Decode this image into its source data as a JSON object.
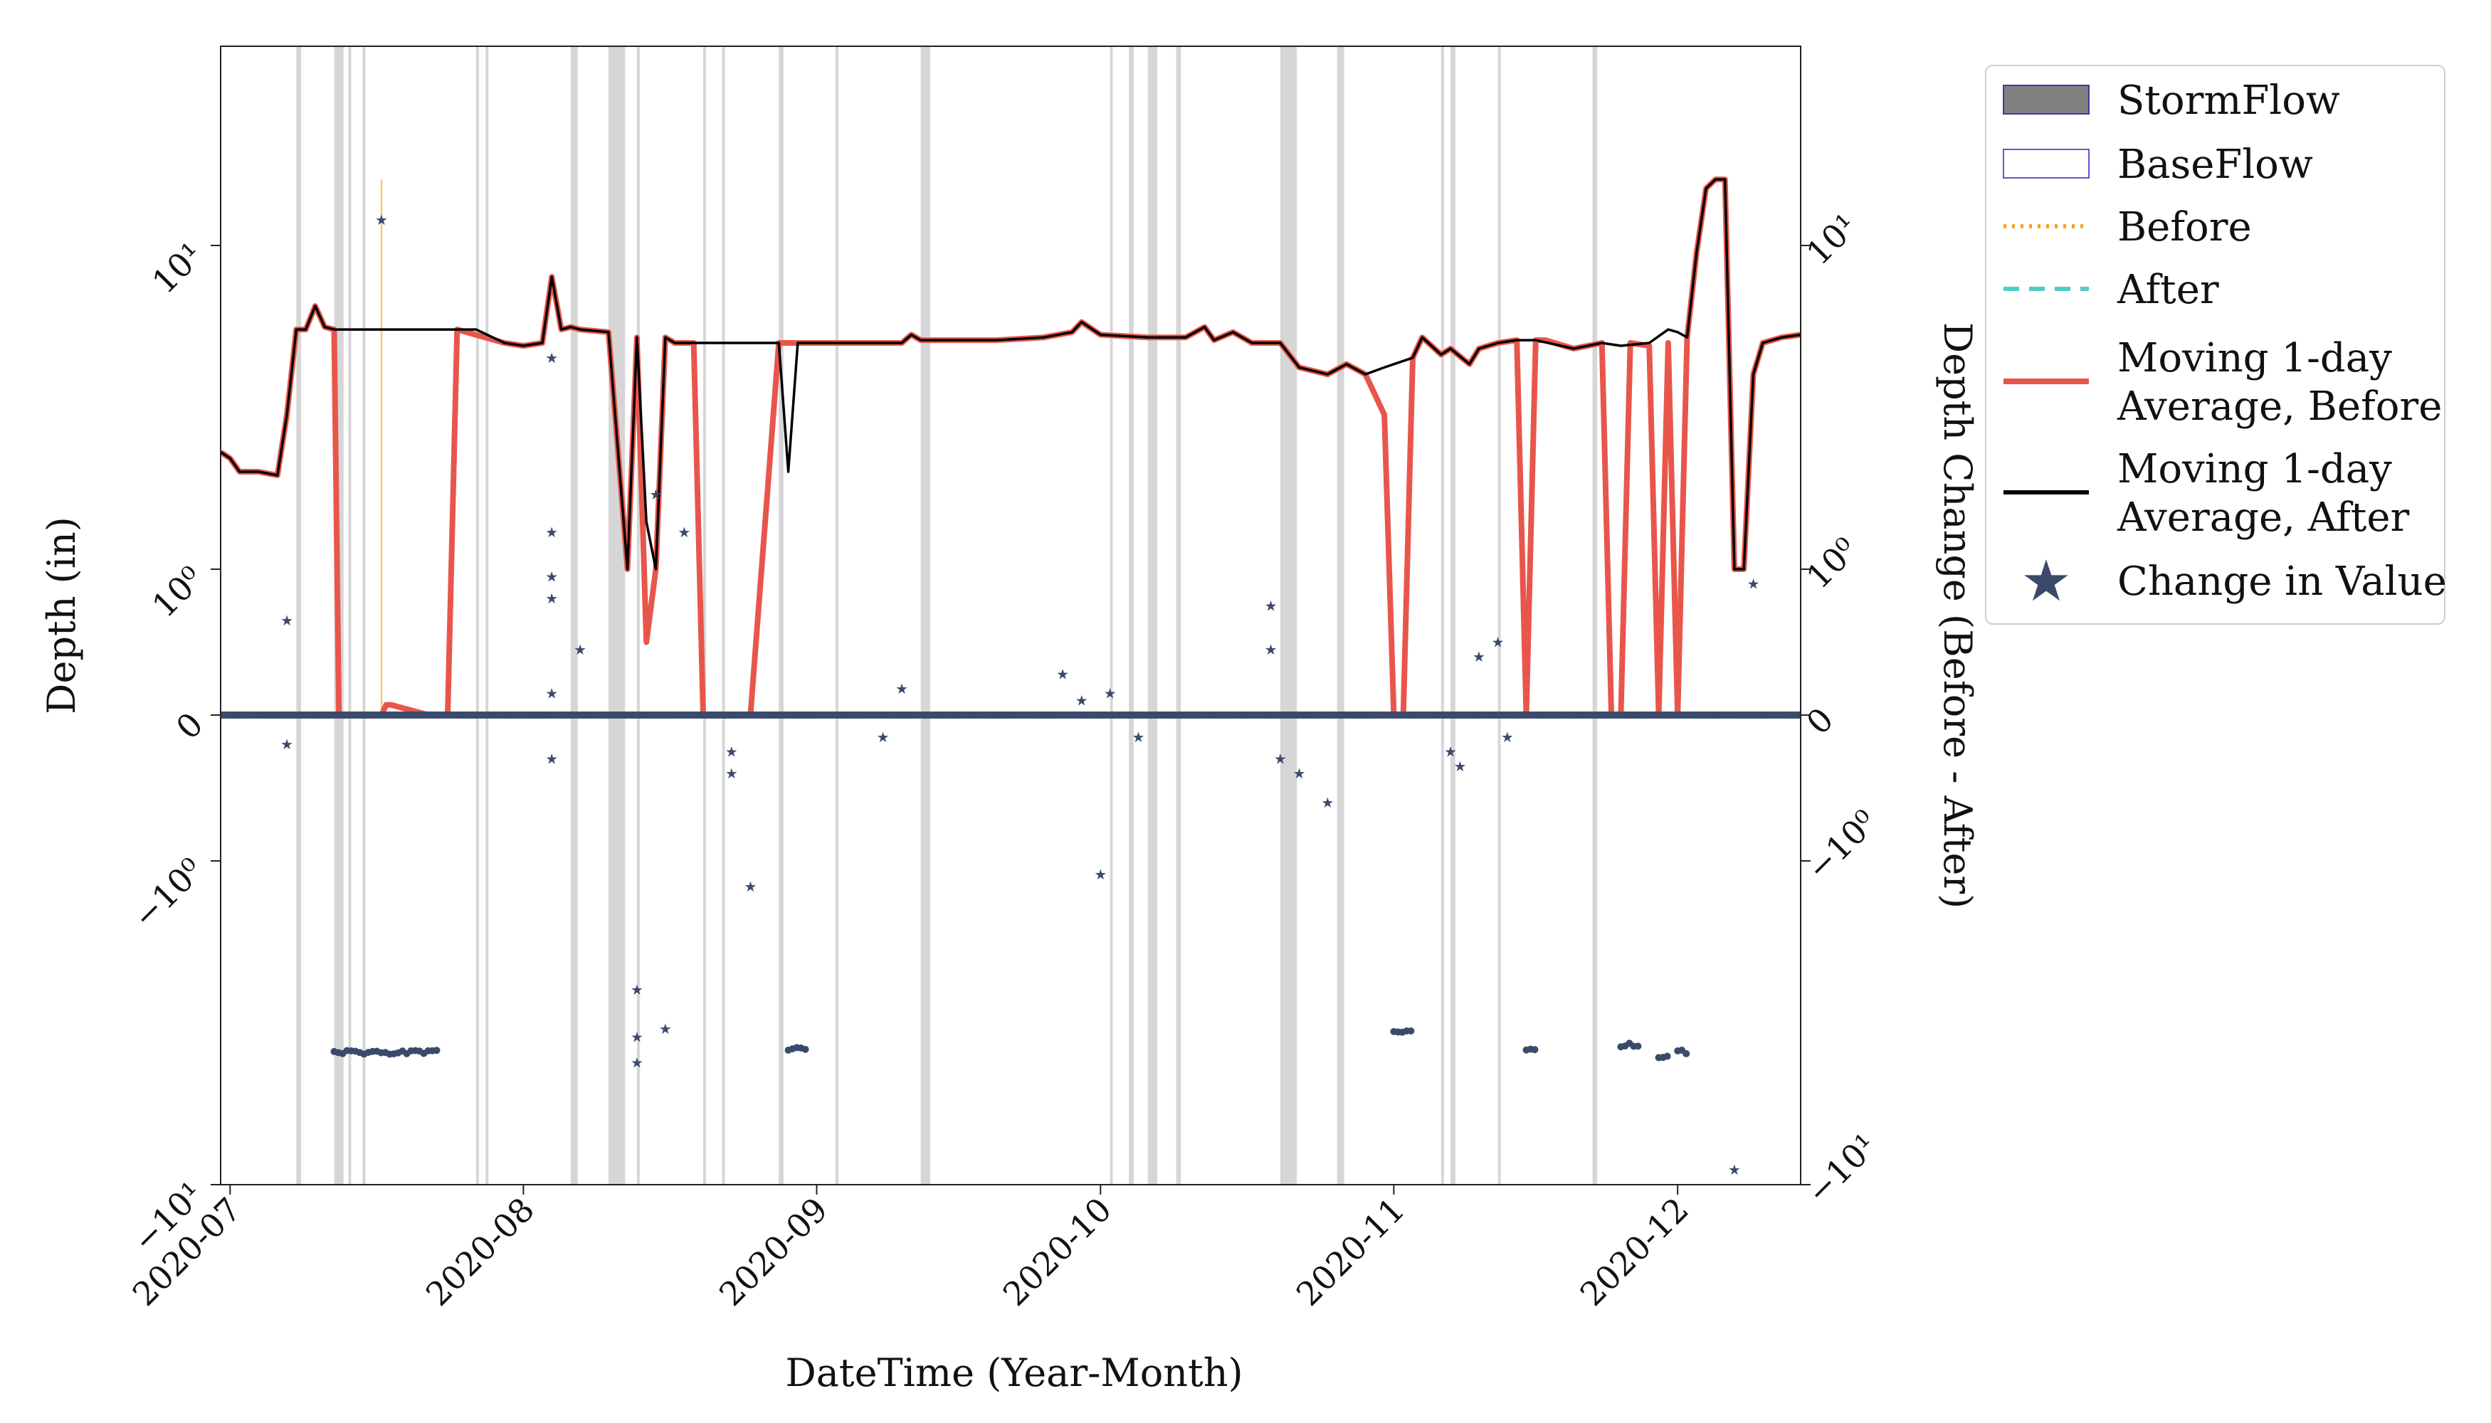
{
  "chart_data": {
    "type": "line",
    "xlabel": "DateTime (Year-Month)",
    "ylabel": "Depth (in)",
    "y2label": "Depth Change (Before - After)",
    "yscale": "symlog",
    "ylim": [
      -10,
      30
    ],
    "y2lim": [
      -10,
      30
    ],
    "xlim": [
      "2020-06-30",
      "2020-12-14"
    ],
    "x_ticks": [
      "2020-07-01",
      "2020-08-01",
      "2020-09-01",
      "2020-10-01",
      "2020-11-01",
      "2020-12-01"
    ],
    "x_tick_labels": [
      "2020-07",
      "2020-08",
      "2020-09",
      "2020-10",
      "2020-11",
      "2020-12"
    ],
    "y_tick_labels": [
      "10¹",
      "10⁰",
      "0",
      "−10⁰",
      "−10¹"
    ],
    "legend_position": "right-outside-top",
    "legend": [
      {
        "label": "StormFlow",
        "kind": "patch-filled",
        "color": "#808080",
        "edge": "#3a3aa8"
      },
      {
        "label": "BaseFlow",
        "kind": "patch-empty",
        "color": "#ffffff",
        "edge": "#5a5acc"
      },
      {
        "label": "Before",
        "kind": "line-dotted",
        "color": "#f5a623"
      },
      {
        "label": "After",
        "kind": "line-dashed",
        "color": "#4ecdc4"
      },
      {
        "label": "Moving 1-day\nAverage, Before",
        "kind": "line-solid-thick",
        "color": "#e8564b"
      },
      {
        "label": "Moving 1-day\nAverage, After",
        "kind": "line-solid",
        "color": "#000000"
      },
      {
        "label": "Change in Value",
        "kind": "marker-star",
        "color": "#3b4a6b"
      }
    ],
    "colors": {
      "storm": "#c8c8c8",
      "before": "#f5b041",
      "after": "#8bc9a3",
      "avg_before": "#e8564b",
      "avg_after": "#000000",
      "change": "#3b4a6b"
    },
    "stormflow_periods": [
      [
        "2020-07-08",
        "2020-07-08T12"
      ],
      [
        "2020-07-12",
        "2020-07-13"
      ],
      [
        "2020-07-13T12",
        "2020-07-13T18"
      ],
      [
        "2020-07-15",
        "2020-07-15T06"
      ],
      [
        "2020-07-27",
        "2020-07-27T06"
      ],
      [
        "2020-07-28",
        "2020-07-28T06"
      ],
      [
        "2020-08-06",
        "2020-08-06T18"
      ],
      [
        "2020-08-10",
        "2020-08-11T18"
      ],
      [
        "2020-08-13",
        "2020-08-13T06"
      ],
      [
        "2020-08-20",
        "2020-08-20T06"
      ],
      [
        "2020-08-22",
        "2020-08-22T06"
      ],
      [
        "2020-08-28",
        "2020-08-28T12"
      ],
      [
        "2020-09-03",
        "2020-09-03T06"
      ],
      [
        "2020-09-12",
        "2020-09-13"
      ],
      [
        "2020-10-02",
        "2020-10-02T06"
      ],
      [
        "2020-10-04",
        "2020-10-04T12"
      ],
      [
        "2020-10-06",
        "2020-10-07"
      ],
      [
        "2020-10-09",
        "2020-10-09T12"
      ],
      [
        "2020-10-20",
        "2020-10-21T18"
      ],
      [
        "2020-10-26",
        "2020-10-26T18"
      ],
      [
        "2020-11-06",
        "2020-11-06T06"
      ],
      [
        "2020-11-07",
        "2020-11-07T12"
      ],
      [
        "2020-11-12",
        "2020-11-12T06"
      ],
      [
        "2020-11-22",
        "2020-11-22T12"
      ]
    ],
    "series": [
      {
        "name": "Moving 1-day Average, After",
        "x": [
          "2020-06-30",
          "2020-07-01",
          "2020-07-02",
          "2020-07-04",
          "2020-07-06",
          "2020-07-07",
          "2020-07-08",
          "2020-07-09",
          "2020-07-10",
          "2020-07-11",
          "2020-07-12",
          "2020-07-13",
          "2020-07-14",
          "2020-07-20",
          "2020-07-25",
          "2020-07-26",
          "2020-07-27",
          "2020-07-30",
          "2020-08-01",
          "2020-08-03",
          "2020-08-04",
          "2020-08-05",
          "2020-08-06",
          "2020-08-07",
          "2020-08-10",
          "2020-08-12",
          "2020-08-13",
          "2020-08-14",
          "2020-08-15",
          "2020-08-16",
          "2020-08-17",
          "2020-08-18",
          "2020-08-19",
          "2020-08-20",
          "2020-08-25",
          "2020-08-28",
          "2020-08-29",
          "2020-08-30",
          "2020-08-31",
          "2020-09-10",
          "2020-09-11",
          "2020-09-12",
          "2020-09-20",
          "2020-09-25",
          "2020-09-28",
          "2020-09-29",
          "2020-10-01",
          "2020-10-06",
          "2020-10-10",
          "2020-10-12",
          "2020-10-13",
          "2020-10-15",
          "2020-10-17",
          "2020-10-20",
          "2020-10-22",
          "2020-10-25",
          "2020-10-27",
          "2020-10-29",
          "2020-10-31",
          "2020-11-03",
          "2020-11-04",
          "2020-11-06",
          "2020-11-07",
          "2020-11-09",
          "2020-11-10",
          "2020-11-12",
          "2020-11-14",
          "2020-11-16",
          "2020-11-20",
          "2020-11-23",
          "2020-11-25",
          "2020-11-28",
          "2020-11-30",
          "2020-12-01",
          "2020-12-02",
          "2020-12-03",
          "2020-12-04",
          "2020-12-05",
          "2020-12-06",
          "2020-12-07",
          "2020-12-08",
          "2020-12-09",
          "2020-12-10",
          "2020-12-12",
          "2020-12-14"
        ],
        "y": [
          2.3,
          2.2,
          2.0,
          2.0,
          1.95,
          3.0,
          5.5,
          5.5,
          6.5,
          5.6,
          5.5,
          5.5,
          5.5,
          5.5,
          5.5,
          5.5,
          5.5,
          5.0,
          4.9,
          5.0,
          8.0,
          5.5,
          5.6,
          5.5,
          5.4,
          1.0,
          5.2,
          1.4,
          1.0,
          5.2,
          5.0,
          5.0,
          5.0,
          5.0,
          5.0,
          5.0,
          2.0,
          5.0,
          5.0,
          5.0,
          5.3,
          5.1,
          5.1,
          5.2,
          5.4,
          5.8,
          5.3,
          5.2,
          5.2,
          5.6,
          5.1,
          5.4,
          5.0,
          5.0,
          4.2,
          4.0,
          4.3,
          4.0,
          4.2,
          4.5,
          5.2,
          4.6,
          4.8,
          4.3,
          4.8,
          5.0,
          5.1,
          5.1,
          4.8,
          5.0,
          4.9,
          5.0,
          5.5,
          5.4,
          5.2,
          9.5,
          15.0,
          16.0,
          16.0,
          1.0,
          1.0,
          4.0,
          5.0,
          5.2,
          5.3
        ]
      },
      {
        "name": "Moving 1-day Average, Before",
        "x": [
          "2020-06-30",
          "2020-07-01",
          "2020-07-02",
          "2020-07-04",
          "2020-07-06",
          "2020-07-07",
          "2020-07-08",
          "2020-07-09",
          "2020-07-10",
          "2020-07-11",
          "2020-07-12",
          "2020-07-12T12",
          "2020-07-17",
          "2020-07-17T12",
          "2020-07-18",
          "2020-07-22",
          "2020-07-23",
          "2020-07-24",
          "2020-07-25",
          "2020-07-30",
          "2020-08-01",
          "2020-08-03",
          "2020-08-04",
          "2020-08-05",
          "2020-08-06",
          "2020-08-07",
          "2020-08-10",
          "2020-08-12",
          "2020-08-13",
          "2020-08-14",
          "2020-08-15",
          "2020-08-16",
          "2020-08-17",
          "2020-08-18",
          "2020-08-19",
          "2020-08-20",
          "2020-08-25",
          "2020-08-28",
          "2020-08-29",
          "2020-08-30",
          "2020-08-31",
          "2020-09-01",
          "2020-09-10",
          "2020-09-11",
          "2020-09-12",
          "2020-09-20",
          "2020-09-25",
          "2020-09-28",
          "2020-09-29",
          "2020-10-01",
          "2020-10-06",
          "2020-10-10",
          "2020-10-12",
          "2020-10-13",
          "2020-10-15",
          "2020-10-17",
          "2020-10-20",
          "2020-10-22",
          "2020-10-25",
          "2020-10-27",
          "2020-10-29",
          "2020-10-31",
          "2020-11-01",
          "2020-11-02",
          "2020-11-03",
          "2020-11-04",
          "2020-11-06",
          "2020-11-07",
          "2020-11-09",
          "2020-11-10",
          "2020-11-12",
          "2020-11-14",
          "2020-11-15",
          "2020-11-16",
          "2020-11-17",
          "2020-11-20",
          "2020-11-23",
          "2020-11-24",
          "2020-11-25",
          "2020-11-26",
          "2020-11-28",
          "2020-11-29",
          "2020-11-30",
          "2020-12-01",
          "2020-12-02",
          "2020-12-03",
          "2020-12-04",
          "2020-12-05",
          "2020-12-06",
          "2020-12-07",
          "2020-12-08",
          "2020-12-09",
          "2020-12-10",
          "2020-12-12",
          "2020-12-14"
        ],
        "y": [
          2.3,
          2.2,
          2.0,
          2.0,
          1.95,
          3.0,
          5.5,
          5.5,
          6.5,
          5.6,
          5.5,
          0,
          0,
          0.07,
          0.07,
          0,
          0,
          0,
          5.5,
          5.0,
          4.9,
          5.0,
          8.0,
          5.5,
          5.6,
          5.5,
          5.4,
          1.0,
          5.2,
          0.5,
          1.0,
          5.2,
          5.0,
          5.0,
          5.0,
          0,
          0,
          5.0,
          5.0,
          5.0,
          5.0,
          5.0,
          5.0,
          5.3,
          5.1,
          5.1,
          5.2,
          5.4,
          5.8,
          5.3,
          5.2,
          5.2,
          5.6,
          5.1,
          5.4,
          5.0,
          5.0,
          4.2,
          4.0,
          4.3,
          4.0,
          3.0,
          0,
          0,
          4.5,
          5.2,
          4.6,
          4.8,
          4.3,
          4.8,
          5.0,
          5.1,
          0,
          5.1,
          5.1,
          4.8,
          5.0,
          0,
          0,
          5.0,
          4.9,
          0,
          5.0,
          0,
          5.2,
          9.5,
          15.0,
          16.0,
          16.0,
          1.0,
          1.0,
          4.0,
          5.0,
          5.2,
          5.3
        ]
      }
    ],
    "change_in_value_points": [
      {
        "x": "2020-07-07",
        "y": 0.65
      },
      {
        "x": "2020-07-07",
        "y": -0.2
      },
      {
        "x": "2020-07-17",
        "y": 12.0
      },
      {
        "x": "2020-08-04",
        "y": 4.5
      },
      {
        "x": "2020-08-04",
        "y": 1.3
      },
      {
        "x": "2020-08-04",
        "y": 0.95
      },
      {
        "x": "2020-08-04",
        "y": 0.8
      },
      {
        "x": "2020-08-04",
        "y": 0.15
      },
      {
        "x": "2020-08-04",
        "y": -0.3
      },
      {
        "x": "2020-08-07",
        "y": 0.45
      },
      {
        "x": "2020-08-13",
        "y": -2.5
      },
      {
        "x": "2020-08-13",
        "y": -3.5
      },
      {
        "x": "2020-08-13",
        "y": -4.2
      },
      {
        "x": "2020-08-15",
        "y": 1.7
      },
      {
        "x": "2020-08-16",
        "y": -3.3
      },
      {
        "x": "2020-08-18",
        "y": 1.3
      },
      {
        "x": "2020-08-23",
        "y": -0.25
      },
      {
        "x": "2020-08-23",
        "y": -0.4
      },
      {
        "x": "2020-08-25",
        "y": -1.2
      },
      {
        "x": "2020-09-08",
        "y": -0.15
      },
      {
        "x": "2020-09-10",
        "y": 0.18
      },
      {
        "x": "2020-09-27",
        "y": 0.28
      },
      {
        "x": "2020-09-29",
        "y": 0.1
      },
      {
        "x": "2020-10-01",
        "y": -1.1
      },
      {
        "x": "2020-10-02",
        "y": 0.15
      },
      {
        "x": "2020-10-05",
        "y": -0.15
      },
      {
        "x": "2020-10-19",
        "y": 0.75
      },
      {
        "x": "2020-10-19",
        "y": 0.45
      },
      {
        "x": "2020-10-20",
        "y": -0.3
      },
      {
        "x": "2020-10-22",
        "y": -0.4
      },
      {
        "x": "2020-10-25",
        "y": -0.6
      },
      {
        "x": "2020-11-07",
        "y": -0.25
      },
      {
        "x": "2020-11-08",
        "y": -0.35
      },
      {
        "x": "2020-11-10",
        "y": 0.4
      },
      {
        "x": "2020-11-12",
        "y": 0.5
      },
      {
        "x": "2020-11-13",
        "y": -0.15
      },
      {
        "x": "2020-12-07",
        "y": -9.0
      },
      {
        "x": "2020-12-09",
        "y": 0.9
      }
    ],
    "change_in_value_clusters": [
      {
        "x_start": "2020-07-12",
        "x_end": "2020-07-23",
        "y": -3.9
      },
      {
        "x_start": "2020-08-29",
        "x_end": "2020-08-31",
        "y": -3.8
      },
      {
        "x_start": "2020-11-01",
        "x_end": "2020-11-03",
        "y": -3.4
      },
      {
        "x_start": "2020-11-15",
        "x_end": "2020-11-16",
        "y": -3.8
      },
      {
        "x_start": "2020-11-25",
        "x_end": "2020-11-27",
        "y": -3.7
      },
      {
        "x_start": "2020-11-29",
        "x_end": "2020-11-30",
        "y": -4.0
      },
      {
        "x_start": "2020-12-01",
        "x_end": "2020-12-02",
        "y": -3.9
      }
    ]
  }
}
